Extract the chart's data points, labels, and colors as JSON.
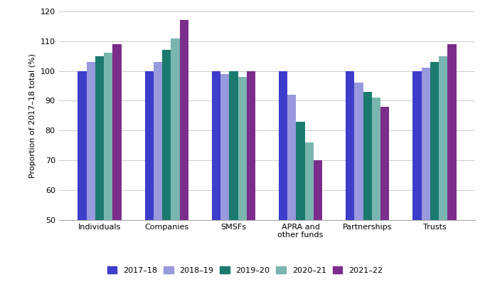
{
  "categories": [
    "Individuals",
    "Companies",
    "SMSFs",
    "APRA and\nother funds",
    "Partnerships",
    "Trusts"
  ],
  "series": {
    "2017–18": [
      100,
      100,
      100,
      100,
      100,
      100
    ],
    "2018–19": [
      103,
      103,
      99,
      92,
      96,
      101
    ],
    "2019–20": [
      105,
      107,
      100,
      83,
      93,
      103
    ],
    "2020–21": [
      106,
      111,
      98,
      76,
      91,
      105
    ],
    "2021–22": [
      109,
      117,
      100,
      70,
      88,
      109
    ]
  },
  "series_order": [
    "2017–18",
    "2018–19",
    "2019–20",
    "2020–21",
    "2021–22"
  ],
  "colors": {
    "2017–18": "#3d3dcc",
    "2018–19": "#9999dd",
    "2019–20": "#1a7a6e",
    "2020–21": "#7ab5b0",
    "2021–22": "#7b2d8b"
  },
  "ylabel": "Proportion of 2017–18 total (%)",
  "ylim": [
    50,
    120
  ],
  "yticks": [
    50,
    60,
    70,
    80,
    90,
    100,
    110,
    120
  ],
  "background_color": "#ffffff",
  "grid_color": "#cccccc",
  "bar_width": 0.13,
  "figwidth": 6.89,
  "figheight": 3.96,
  "dpi": 100
}
